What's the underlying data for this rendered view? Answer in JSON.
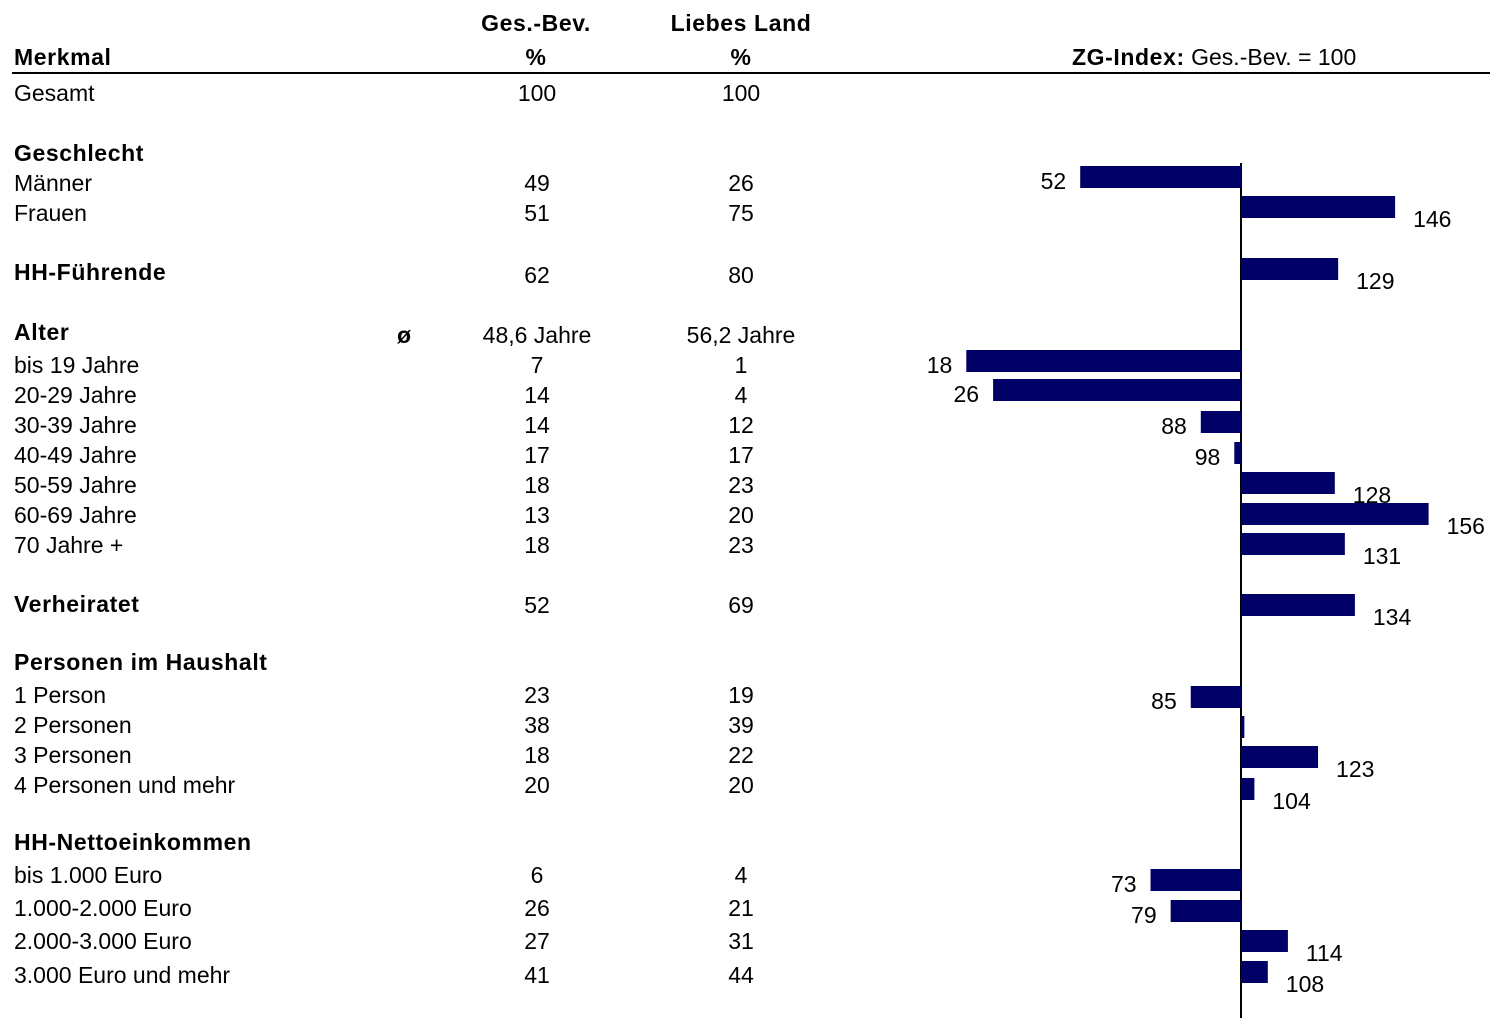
{
  "header": {
    "col1_top": "Ges.-Bev.",
    "col1_unit": "%",
    "col2_top": "Liebes Land",
    "col2_unit": "%",
    "merkmal": "Merkmal",
    "index_bold": "ZG-Index:",
    "index_rest": "Ges.-Bev. = 100"
  },
  "sections": {
    "geschlecht": "Geschlecht",
    "hh_fuehrende": "HH-Führende",
    "alter": "Alter",
    "alter_symbol": "ø",
    "verheiratet": "Verheiratet",
    "personen": "Personen im Haushalt",
    "einkommen": "HH-Nettoeinkommen"
  },
  "rows": [
    {
      "label": "Gesamt",
      "gesbev": "100",
      "land": "100"
    },
    {
      "label": "Männer",
      "gesbev": "49",
      "land": "26"
    },
    {
      "label": "Frauen",
      "gesbev": "51",
      "land": "75"
    },
    {
      "label": "",
      "gesbev": "62",
      "land": "80"
    },
    {
      "label": "",
      "gesbev": "48,6 Jahre",
      "land": "56,2 Jahre"
    },
    {
      "label": "bis 19 Jahre",
      "gesbev": "7",
      "land": "1"
    },
    {
      "label": "20-29 Jahre",
      "gesbev": "14",
      "land": "4"
    },
    {
      "label": "30-39 Jahre",
      "gesbev": "14",
      "land": "12"
    },
    {
      "label": "40-49 Jahre",
      "gesbev": "17",
      "land": "17"
    },
    {
      "label": "50-59 Jahre",
      "gesbev": "18",
      "land": "23"
    },
    {
      "label": "60-69 Jahre",
      "gesbev": "13",
      "land": "20"
    },
    {
      "label": "70 Jahre +",
      "gesbev": "18",
      "land": "23"
    },
    {
      "label": "",
      "gesbev": "52",
      "land": "69"
    },
    {
      "label": "1 Person",
      "gesbev": "23",
      "land": "19"
    },
    {
      "label": "2 Personen",
      "gesbev": "38",
      "land": "39"
    },
    {
      "label": "3 Personen",
      "gesbev": "18",
      "land": "22"
    },
    {
      "label": "4 Personen und mehr",
      "gesbev": "20",
      "land": "20"
    },
    {
      "label": "bis 1.000 Euro",
      "gesbev": "6",
      "land": "4"
    },
    {
      "label": "1.000-2.000 Euro",
      "gesbev": "26",
      "land": "21"
    },
    {
      "label": "2.000-3.000 Euro",
      "gesbev": "27",
      "land": "31"
    },
    {
      "label": "3.000 Euro und mehr",
      "gesbev": "41",
      "land": "44"
    }
  ],
  "chart_data": {
    "type": "bar",
    "orientation": "horizontal",
    "baseline": 100,
    "bar_color": "#000066",
    "categories": [
      "Männer",
      "Frauen",
      "HH-Führende",
      "bis 19 Jahre",
      "20-29 Jahre",
      "30-39 Jahre",
      "40-49 Jahre",
      "50-59 Jahre",
      "60-69 Jahre",
      "70 Jahre +",
      "Verheiratet",
      "1 Person",
      "2 Personen",
      "3 Personen",
      "4 Personen und mehr",
      "bis 1.000 Euro",
      "1.000-2.000 Euro",
      "2.000-3.000 Euro",
      "3.000 Euro und mehr"
    ],
    "values": [
      52,
      146,
      129,
      18,
      26,
      88,
      98,
      128,
      156,
      131,
      134,
      85,
      101,
      123,
      104,
      73,
      79,
      114,
      108
    ],
    "labels": [
      "52",
      "146",
      "129",
      "18",
      "26",
      "88",
      "98",
      "128",
      "156",
      "131",
      "134",
      "85",
      "",
      "123",
      "104",
      "73",
      "79",
      "114",
      "108"
    ]
  }
}
